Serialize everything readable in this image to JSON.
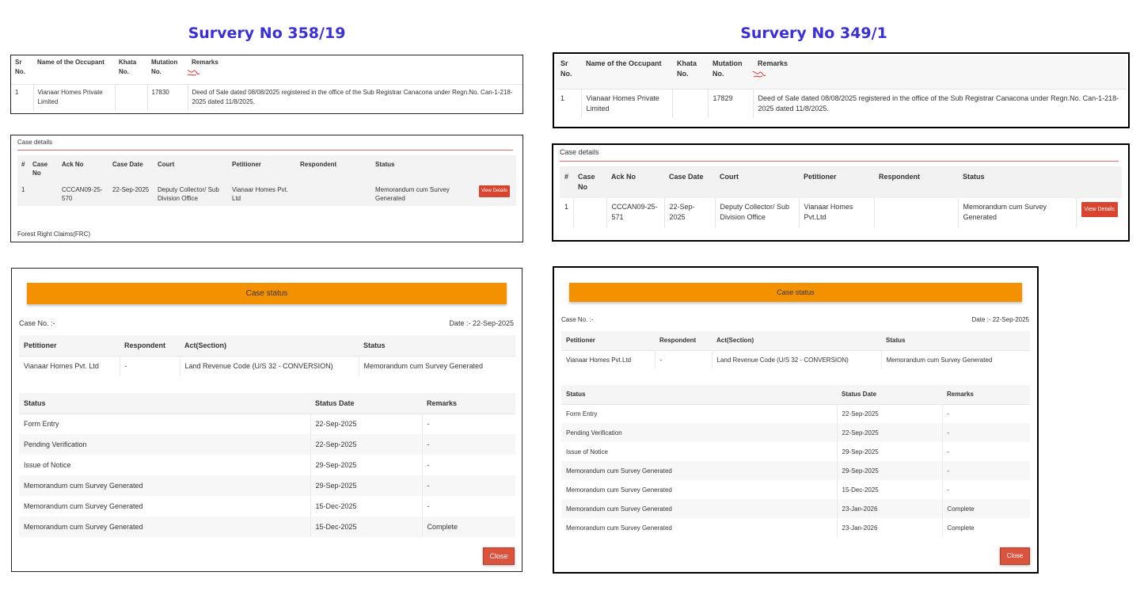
{
  "left": {
    "title": "Survery No 358/19",
    "occupant": {
      "headers": [
        "Sr No.",
        "Name of the Occupant",
        "Khata No.",
        "Mutation No.",
        "Remarks"
      ],
      "row": [
        "1",
        "Vianaar Homes Private Limited",
        "",
        "17830",
        "Deed of Sale dated 08/08/2025 registered in the office of the Sub Registrar Canacona under Regn.No. Can-1-218-2025 dated 11/8/2025."
      ]
    },
    "case_details": {
      "label": "Case details",
      "headers": [
        "#",
        "Case No",
        "Ack No",
        "Case Date",
        "Court",
        "Petitioner",
        "Respondent",
        "Status",
        ""
      ],
      "row": [
        "1",
        "",
        "CCCAN09-25-570",
        "22-Sep-2025",
        "Deputy Collector/ Sub Division Office",
        "Vianaar Homes Pvt. Ltd",
        "",
        "Memorandum cum Survey Generated"
      ],
      "button": "View Details",
      "footer": "Forest Right Claims(FRC)"
    },
    "case_status": {
      "bar": "Case status",
      "case_no": "Case No.  :-",
      "date": "Date  :- 22-Sep-2025",
      "parties_headers": [
        "Petitioner",
        "Respondent",
        "Act(Section)",
        "Status"
      ],
      "parties_row": [
        "Vianaar Homes Pvt. Ltd",
        "-",
        "Land Revenue Code (U/S 32 - CONVERSION)",
        "Memorandum cum Survey Generated"
      ],
      "history_headers": [
        "Status",
        "Status Date",
        "Remarks"
      ],
      "history": [
        [
          "Form Entry",
          "22-Sep-2025",
          "-"
        ],
        [
          "Pending Verification",
          "22-Sep-2025",
          "-"
        ],
        [
          "Issue of Notice",
          "29-Sep-2025",
          "-"
        ],
        [
          "Memorandum cum Survey Generated",
          "29-Sep-2025",
          "-"
        ],
        [
          "Memorandum cum Survey Generated",
          "15-Dec-2025",
          "-"
        ],
        [
          "Memorandum cum Survey Generated",
          "15-Dec-2025",
          "Complete"
        ]
      ],
      "close": "Close"
    }
  },
  "right": {
    "title": "Survery No 349/1",
    "occupant": {
      "headers": [
        "Sr No.",
        "Name of the Occupant",
        "Khata No.",
        "Mutation No.",
        "Remarks"
      ],
      "row": [
        "1",
        "Vianaar Homes Private Limited",
        "",
        "17829",
        "Deed of Sale dated 08/08/2025 registered in the office of the Sub Registrar Canacona under Regn.No. Can-1-218-2025 dated 11/8/2025."
      ]
    },
    "case_details": {
      "label": "Case details",
      "headers": [
        "#",
        "Case No",
        "Ack No",
        "Case Date",
        "Court",
        "Petitioner",
        "Respondent",
        "Status",
        ""
      ],
      "row": [
        "1",
        "",
        "CCCAN09-25-571",
        "22-Sep-2025",
        "Deputy Collector/ Sub Division Office",
        "Vianaar Homes Pvt.Ltd",
        "",
        "Memorandum cum Survey Generated"
      ],
      "button": "View Details"
    },
    "case_status": {
      "bar": "Case status",
      "case_no": "Case No.  :-",
      "date": "Date  :- 22-Sep-2025",
      "parties_headers": [
        "Petitioner",
        "Respondent",
        "Act(Section)",
        "Status"
      ],
      "parties_row": [
        "Vianaar Homes Pvt.Ltd",
        "-",
        "Land Revenue Code (U/S 32 - CONVERSION)",
        "Memorandum cum Survey Generated"
      ],
      "history_headers": [
        "Status",
        "Status Date",
        "Remarks"
      ],
      "history": [
        [
          "Form Entry",
          "22-Sep-2025",
          "-"
        ],
        [
          "Pending Verification",
          "22-Sep-2025",
          "-"
        ],
        [
          "Issue of Notice",
          "29-Sep-2025",
          "-"
        ],
        [
          "Memorandum cum Survey Generated",
          "29-Sep-2025",
          "-"
        ],
        [
          "Memorandum cum Survey Generated",
          "15-Dec-2025",
          "-"
        ],
        [
          "Memorandum cum Survey Generated",
          "23-Jan-2026",
          "Complete"
        ],
        [
          "Memorandum cum Survey Generated",
          "23-Jan-2026",
          "Complete"
        ]
      ],
      "close": "Close"
    }
  },
  "colors": {
    "title": "#3a2fd8",
    "bar": "#f49100",
    "button": "#d9442f",
    "divider": "#e06a6a"
  }
}
